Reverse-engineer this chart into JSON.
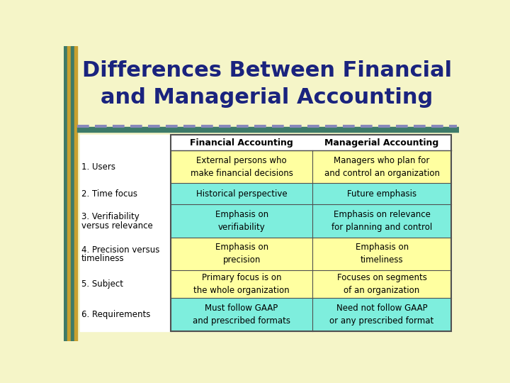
{
  "title_line1": "Differences Between Financial",
  "title_line2": "and Managerial Accounting",
  "title_color": "#1a237e",
  "slide_bg": "#f5f5c8",
  "col1_header": "Financial Accounting",
  "col2_header": "Managerial Accounting",
  "stripe_colors": [
    "#3d7a68",
    "#b8941c",
    "#3d7a68",
    "#b8941c",
    "#8080a8",
    "#3d7a68",
    "#b8941c",
    "#8080a8",
    "#3d7a68",
    "#b8941c",
    "#3d7a68"
  ],
  "rows": [
    {
      "label": "1. Users",
      "label2": "",
      "col1": "External persons who\nmake financial decisions",
      "col2": "Managers who plan for\nand control an organization",
      "col1_bg": "#ffffa0",
      "col2_bg": "#ffffa0"
    },
    {
      "label": "2. Time focus",
      "label2": "",
      "col1": "Historical perspective",
      "col2": "Future emphasis",
      "col1_bg": "#7eeedd",
      "col2_bg": "#7eeedd"
    },
    {
      "label": "3. Verifiability",
      "label2": "versus relevance",
      "col1": "Emphasis on\nverifiability",
      "col2": "Emphasis on relevance\nfor planning and control",
      "col1_bg": "#7eeedd",
      "col2_bg": "#7eeedd"
    },
    {
      "label": "4. Precision versus",
      "label2": "timeliness",
      "col1": "Emphasis on\nprecision",
      "col2": "Emphasis on\ntimeliness",
      "col1_bg": "#ffffa0",
      "col2_bg": "#ffffa0"
    },
    {
      "label": "5. Subject",
      "label2": "",
      "col1": "Primary focus is on\nthe whole organization",
      "col2": "Focuses on segments\nof an organization",
      "col1_bg": "#ffffa0",
      "col2_bg": "#ffffa0"
    },
    {
      "label": "6. Requirements",
      "label2": "",
      "col1": "Must follow GAAP\nand prescribed formats",
      "col2": "Need not follow GAAP\nor any prescribed format",
      "col1_bg": "#7eeedd",
      "col2_bg": "#7eeedd"
    }
  ]
}
